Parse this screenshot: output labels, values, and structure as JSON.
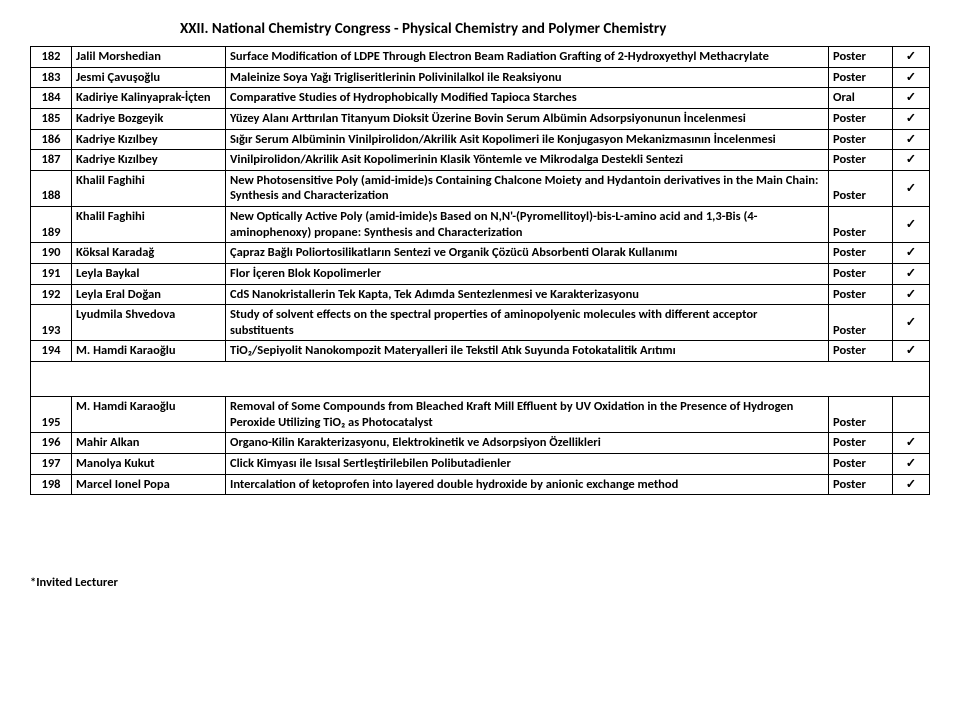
{
  "page_title": "XXII. National Chemistry Congress - Physical Chemistry and Polymer Chemistry",
  "footer": "*Invited Lecturer",
  "check_mark": "✓",
  "rows": [
    {
      "n": "182",
      "author": "Jalil Morshedian",
      "title": "Surface Modification of LDPE Through Electron Beam Radiation Grafting of 2-Hydroxyethyl Methacrylate",
      "type": "Poster",
      "check": true
    },
    {
      "n": "183",
      "author": "Jesmi Çavuşoğlu",
      "title": "Maleinize Soya Yağı Trigliseritlerinin Polivinilalkol ile Reaksiyonu",
      "type": "Poster",
      "check": true
    },
    {
      "n": "184",
      "author": "Kadiriye Kalinyaprak-İçten",
      "title": "Comparative Studies of Hydrophobically Modified Tapioca Starches",
      "type": "Oral",
      "check": true
    },
    {
      "n": "185",
      "author": "Kadriye Bozgeyik",
      "title": "Yüzey Alanı Arttırılan Titanyum Dioksit Üzerine Bovin Serum Albümin Adsorpsiyonunun İncelenmesi",
      "type": "Poster",
      "check": true
    },
    {
      "n": "186",
      "author": "Kadriye Kızılbey",
      "title": "Sığır Serum Albüminin Vinilpirolidon/Akrilik Asit Kopolimeri ile Konjugasyon Mekanizmasının İncelenmesi",
      "type": "Poster",
      "check": true
    },
    {
      "n": "187",
      "author": "Kadriye Kızılbey",
      "title": "Vinilpirolidon/Akrilik Asit Kopolimerinin Klasik Yöntemle ve Mikrodalga Destekli Sentezi",
      "type": "Poster",
      "check": true
    },
    {
      "n": "188",
      "author": "Khalil Faghihi",
      "title": "New Photosensitive Poly (amid-imide)s Containing Chalcone Moiety and Hydantoin derivatives in the Main Chain: Synthesis and Characterization",
      "type": "Poster",
      "check": true
    },
    {
      "n": "189",
      "author": "Khalil Faghihi",
      "title": "New Optically Active Poly (amid-imide)s Based on N,N'-(Pyromellitoyl)-bis-L-amino acid and 1,3-Bis (4-aminophenoxy) propane: Synthesis and Characterization",
      "type": "Poster",
      "check": true
    },
    {
      "n": "190",
      "author": "Köksal Karadağ",
      "title": "Çapraz Bağlı Poliortosilikatların Sentezi ve Organik Çözücü Absorbenti Olarak Kullanımı",
      "type": "Poster",
      "check": true
    },
    {
      "n": "191",
      "author": "Leyla Baykal",
      "title": "Flor İçeren Blok Kopolimerler",
      "type": "Poster",
      "check": true
    },
    {
      "n": "192",
      "author": "Leyla Eral Doğan",
      "title": "CdS Nanokristallerin Tek Kapta, Tek Adımda Sentezlenmesi ve Karakterizasyonu",
      "type": "Poster",
      "check": true
    },
    {
      "n": "193",
      "author": "Lyudmila Shvedova",
      "title": "Study of solvent effects on the spectral properties of aminopolyenic molecules with different acceptor substituents",
      "type": "Poster",
      "check": true
    },
    {
      "n": "194",
      "author": "M. Hamdi Karaoğlu",
      "title": "TiO₂/Sepiyolit Nanokompozit Materyalleri ile Tekstil Atık Suyunda Fotokatalitik Arıtımı",
      "type": "Poster",
      "check": true
    },
    {
      "n": "195",
      "author": "M. Hamdi Karaoğlu",
      "title": "Removal of Some Compounds from Bleached Kraft Mill Effluent by UV Oxidation in the Presence of Hydrogen Peroxide Utilizing TiO₂ as Photocatalyst",
      "type": "Poster",
      "check": false,
      "gap_before": true
    },
    {
      "n": "196",
      "author": "Mahir Alkan",
      "title": "Organo-Kilin Karakterizasyonu, Elektrokinetik ve Adsorpsiyon Özellikleri",
      "type": "Poster",
      "check": true
    },
    {
      "n": "197",
      "author": "Manolya Kukut",
      "title": "Click Kimyası ile Isısal Sertleştirilebilen Polibutadienler",
      "type": "Poster",
      "check": true
    },
    {
      "n": "198",
      "author": "Marcel Ionel Popa",
      "title": "Intercalation of ketoprofen into layered double hydroxide by anionic exchange method",
      "type": "Poster",
      "check": true
    }
  ]
}
